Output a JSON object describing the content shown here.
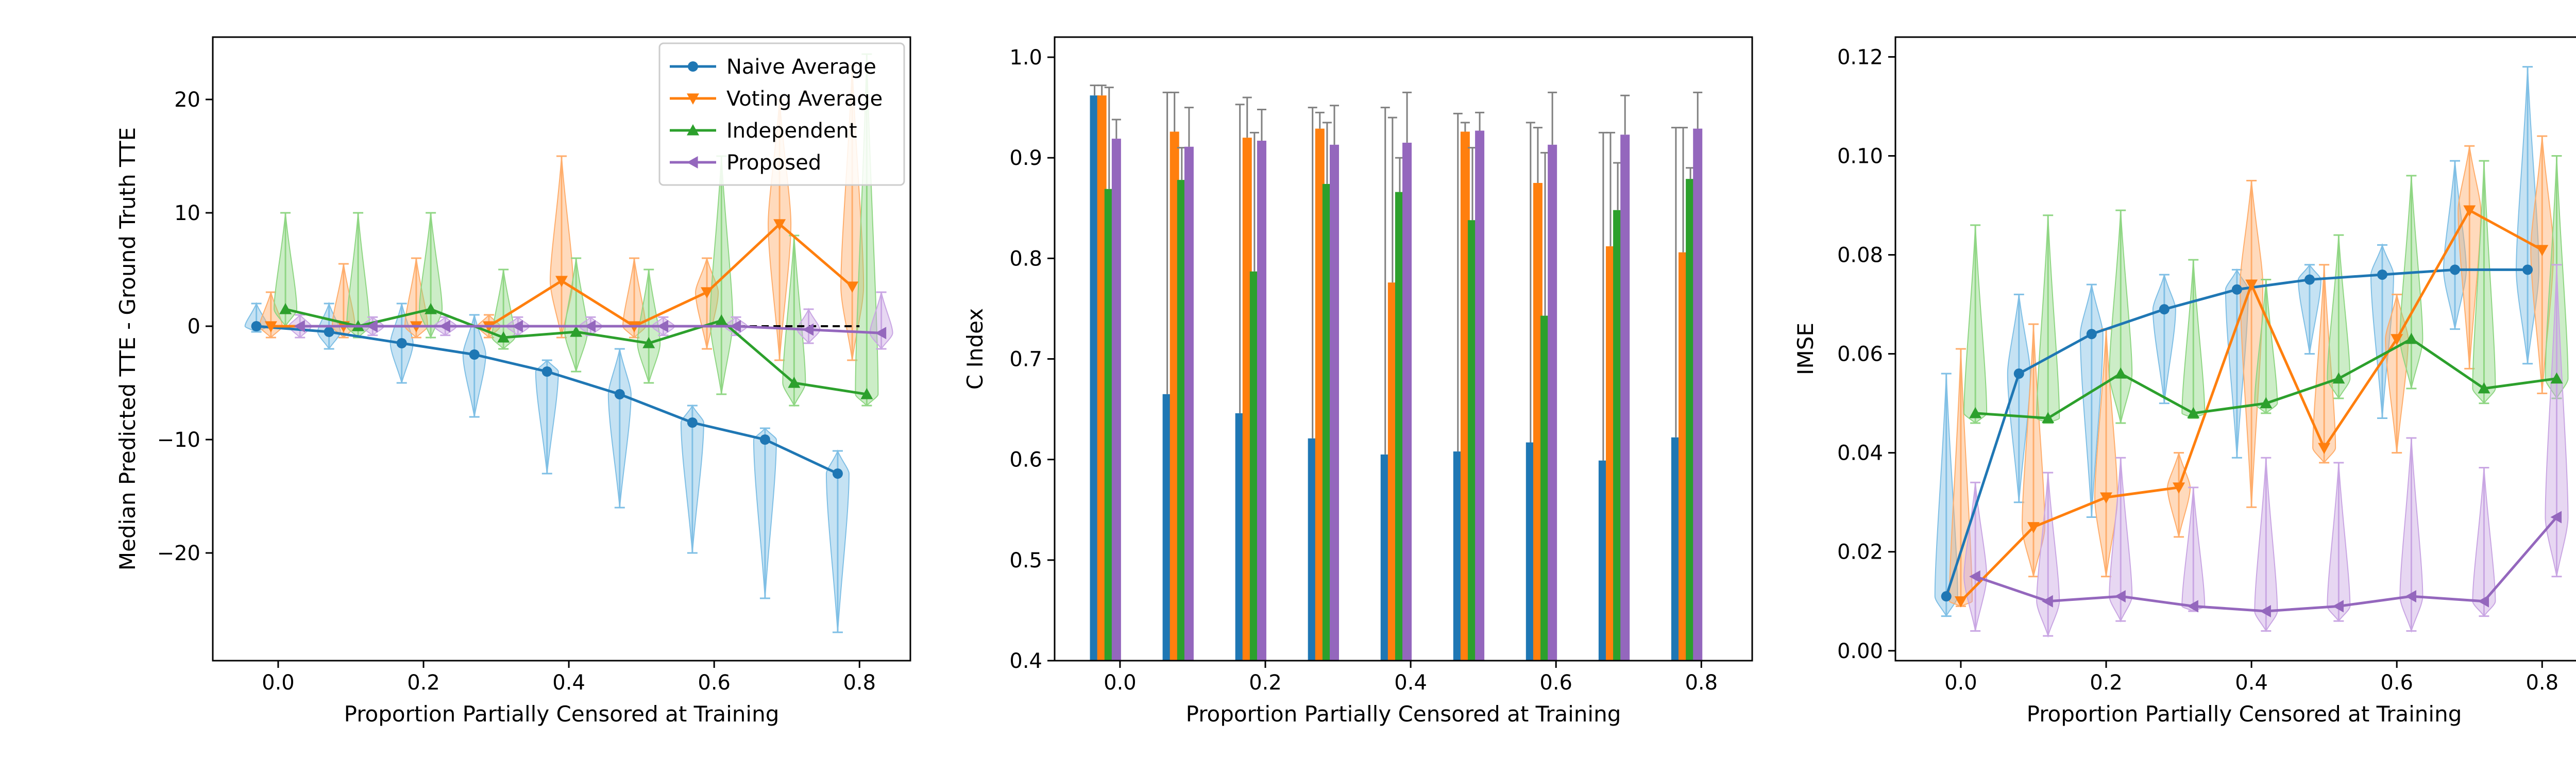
{
  "chart_data": [
    {
      "type": "line",
      "xlabel": "Proportion Partially Censored at Training",
      "ylabel": "Median Predicted TTE - Ground Truth TTE",
      "x_ticks": [
        0.0,
        0.2,
        0.4,
        0.6,
        0.8
      ],
      "x_tick_labels": [
        "0.0",
        "0.2",
        "0.4",
        "0.6",
        "0.8"
      ],
      "y_ticks": [
        -20,
        -10,
        0,
        10,
        20
      ],
      "y_tick_labels": [
        "−20",
        "−10",
        "0",
        "10",
        "20"
      ],
      "xlim": [
        -0.09,
        0.87
      ],
      "ylim": [
        -29.5,
        25.5
      ],
      "grid": false,
      "legend": "top-right",
      "reference_line": {
        "style": "dashed",
        "color": "#000000",
        "x": [
          0.6,
          0.8
        ],
        "y": [
          0,
          0
        ]
      },
      "series": [
        {
          "name": "Naive Average",
          "color": "#1f77b4",
          "marker": "circle",
          "x": [
            -0.03,
            0.07,
            0.17,
            0.27,
            0.37,
            0.47,
            0.57,
            0.67,
            0.77
          ],
          "y": [
            0,
            -0.5,
            -1.5,
            -2.5,
            -4,
            -6,
            -8.5,
            -10,
            -13
          ],
          "violins": [
            [
              -0.5,
              2
            ],
            [
              -2,
              2
            ],
            [
              -5,
              2
            ],
            [
              -8,
              1
            ],
            [
              -13,
              -3
            ],
            [
              -16,
              -2
            ],
            [
              -20,
              -7
            ],
            [
              -24,
              -9
            ],
            [
              -27,
              -11
            ]
          ]
        },
        {
          "name": "Voting Average",
          "color": "#ff7f0e",
          "marker": "triangle_down",
          "x": [
            -0.01,
            0.09,
            0.19,
            0.29,
            0.39,
            0.49,
            0.59,
            0.69,
            0.79
          ],
          "y": [
            0,
            0,
            0,
            0,
            4,
            0,
            3,
            9,
            3.5
          ],
          "violins": [
            [
              -1,
              3
            ],
            [
              -1,
              5.5
            ],
            [
              -1,
              6
            ],
            [
              -1,
              1
            ],
            [
              -1,
              15
            ],
            [
              -1,
              6
            ],
            [
              -2,
              6
            ],
            [
              -3,
              20
            ],
            [
              -3,
              23
            ]
          ]
        },
        {
          "name": "Independent",
          "color": "#2ca02c",
          "marker": "triangle_up",
          "x": [
            0.01,
            0.11,
            0.21,
            0.31,
            0.41,
            0.51,
            0.61,
            0.71,
            0.81
          ],
          "y": [
            1.5,
            0,
            1.5,
            -1,
            -0.5,
            -1.5,
            0.5,
            -5,
            -6
          ],
          "violins": [
            [
              0,
              10
            ],
            [
              -1,
              10
            ],
            [
              -1,
              10
            ],
            [
              -2,
              5
            ],
            [
              -4,
              6
            ],
            [
              -5,
              5
            ],
            [
              -6,
              15
            ],
            [
              -7,
              8
            ],
            [
              -7,
              24
            ]
          ]
        },
        {
          "name": "Proposed",
          "color": "#9467bd",
          "marker": "triangle_left",
          "x": [
            0.03,
            0.13,
            0.23,
            0.33,
            0.43,
            0.53,
            0.63,
            0.73,
            0.83
          ],
          "y": [
            0,
            0,
            0,
            0,
            0,
            0,
            0,
            -0.3,
            -0.6
          ],
          "violins": [
            [
              -1,
              1
            ],
            [
              -0.8,
              0.8
            ],
            [
              -0.8,
              0.8
            ],
            [
              -0.8,
              0.8
            ],
            [
              -0.8,
              0.8
            ],
            [
              -0.8,
              0.8
            ],
            [
              -0.8,
              0.8
            ],
            [
              -1.5,
              1.5
            ],
            [
              -2,
              3
            ]
          ]
        }
      ]
    },
    {
      "type": "bar",
      "xlabel": "",
      "ylabel": "C Index",
      "x_ticks": [
        0.0,
        0.2,
        0.4,
        0.6,
        0.8
      ],
      "x_tick_labels": [
        "0.0",
        "0.2",
        "0.4",
        "0.6",
        "0.8"
      ],
      "y_ticks": [
        0.4,
        0.5,
        0.6,
        0.7,
        0.8,
        0.9,
        1.0
      ],
      "y_tick_labels": [
        "0.4",
        "0.5",
        "0.6",
        "0.7",
        "0.8",
        "0.9",
        "1.0"
      ],
      "xlim": [
        -0.09,
        0.87
      ],
      "ylim": [
        0.4,
        1.02
      ],
      "grid": false,
      "categories_x": [
        -0.02,
        0.08,
        0.18,
        0.28,
        0.38,
        0.48,
        0.58,
        0.68,
        0.78
      ],
      "series": [
        {
          "name": "Naive Average",
          "color": "#1f77b4",
          "offset": -0.015,
          "values": [
            0.962,
            0.665,
            0.646,
            0.621,
            0.605,
            0.608,
            0.617,
            0.599,
            0.622
          ],
          "err_upper": [
            0.972,
            0.965,
            0.953,
            0.95,
            0.95,
            0.944,
            0.935,
            0.925,
            0.93
          ]
        },
        {
          "name": "Voting Average",
          "color": "#ff7f0e",
          "offset": -0.005,
          "values": [
            0.962,
            0.926,
            0.92,
            0.929,
            0.776,
            0.926,
            0.875,
            0.812,
            0.806
          ],
          "err_upper": [
            0.972,
            0.965,
            0.96,
            0.945,
            0.94,
            0.935,
            0.93,
            0.925,
            0.93
          ]
        },
        {
          "name": "Independent",
          "color": "#2ca02c",
          "offset": 0.005,
          "values": [
            0.869,
            0.878,
            0.787,
            0.874,
            0.866,
            0.838,
            0.743,
            0.848,
            0.879
          ],
          "err_upper": [
            0.97,
            0.91,
            0.925,
            0.935,
            0.9,
            0.91,
            0.905,
            0.895,
            0.89
          ]
        },
        {
          "name": "Proposed",
          "color": "#9467bd",
          "offset": 0.015,
          "values": [
            0.919,
            0.911,
            0.917,
            0.913,
            0.915,
            0.927,
            0.913,
            0.923,
            0.929
          ],
          "err_upper": [
            0.938,
            0.95,
            0.948,
            0.952,
            0.965,
            0.945,
            0.965,
            0.962,
            0.965
          ]
        }
      ]
    },
    {
      "type": "line",
      "xlabel": "Proportion Partially Censored at Training",
      "ylabel": "IMSE",
      "x_ticks": [
        0.0,
        0.2,
        0.4,
        0.6,
        0.8
      ],
      "x_tick_labels": [
        "0.0",
        "0.2",
        "0.4",
        "0.6",
        "0.8"
      ],
      "y_ticks": [
        0.0,
        0.02,
        0.04,
        0.06,
        0.08,
        0.1,
        0.12
      ],
      "y_tick_labels": [
        "0.00",
        "0.02",
        "0.04",
        "0.06",
        "0.08",
        "0.10",
        "0.12"
      ],
      "xlim": [
        -0.09,
        0.87
      ],
      "ylim": [
        -0.002,
        0.124
      ],
      "grid": false,
      "series": [
        {
          "name": "Naive Average",
          "color": "#1f77b4",
          "marker": "circle",
          "x": [
            -0.02,
            0.08,
            0.18,
            0.28,
            0.38,
            0.48,
            0.58,
            0.68,
            0.78
          ],
          "y": [
            0.011,
            0.056,
            0.064,
            0.069,
            0.073,
            0.075,
            0.076,
            0.077,
            0.077
          ],
          "violins": [
            [
              0.007,
              0.056
            ],
            [
              0.03,
              0.072
            ],
            [
              0.027,
              0.074
            ],
            [
              0.05,
              0.076
            ],
            [
              0.039,
              0.077
            ],
            [
              0.06,
              0.078
            ],
            [
              0.047,
              0.082
            ],
            [
              0.065,
              0.099
            ],
            [
              0.058,
              0.118
            ]
          ]
        },
        {
          "name": "Voting Average",
          "color": "#ff7f0e",
          "marker": "triangle_down",
          "x": [
            0.0,
            0.1,
            0.2,
            0.3,
            0.4,
            0.5,
            0.6,
            0.7,
            0.8
          ],
          "y": [
            0.01,
            0.025,
            0.031,
            0.033,
            0.074,
            0.041,
            0.063,
            0.089,
            0.081
          ],
          "violins": [
            [
              0.009,
              0.061
            ],
            [
              0.015,
              0.066
            ],
            [
              0.015,
              0.065
            ],
            [
              0.023,
              0.04
            ],
            [
              0.029,
              0.095
            ],
            [
              0.038,
              0.078
            ],
            [
              0.04,
              0.072
            ],
            [
              0.057,
              0.102
            ],
            [
              0.052,
              0.104
            ]
          ]
        },
        {
          "name": "Independent",
          "color": "#2ca02c",
          "marker": "triangle_up",
          "x": [
            0.02,
            0.12,
            0.22,
            0.32,
            0.42,
            0.52,
            0.62,
            0.72,
            0.82
          ],
          "y": [
            0.048,
            0.047,
            0.056,
            0.048,
            0.05,
            0.055,
            0.063,
            0.053,
            0.055
          ],
          "violins": [
            [
              0.046,
              0.086
            ],
            [
              0.046,
              0.088
            ],
            [
              0.046,
              0.089
            ],
            [
              0.047,
              0.079
            ],
            [
              0.048,
              0.075
            ],
            [
              0.051,
              0.084
            ],
            [
              0.053,
              0.096
            ],
            [
              0.05,
              0.099
            ],
            [
              0.051,
              0.1
            ]
          ]
        },
        {
          "name": "Proposed",
          "color": "#9467bd",
          "marker": "triangle_left",
          "x": [
            0.02,
            0.12,
            0.22,
            0.32,
            0.42,
            0.52,
            0.62,
            0.72,
            0.82
          ],
          "y": [
            0.015,
            0.01,
            0.011,
            0.009,
            0.008,
            0.009,
            0.011,
            0.01,
            0.027
          ],
          "violins": [
            [
              0.004,
              0.034
            ],
            [
              0.003,
              0.036
            ],
            [
              0.006,
              0.039
            ],
            [
              0.008,
              0.033
            ],
            [
              0.004,
              0.039
            ],
            [
              0.006,
              0.038
            ],
            [
              0.004,
              0.043
            ],
            [
              0.007,
              0.037
            ],
            [
              0.015,
              0.078
            ]
          ]
        }
      ]
    }
  ]
}
